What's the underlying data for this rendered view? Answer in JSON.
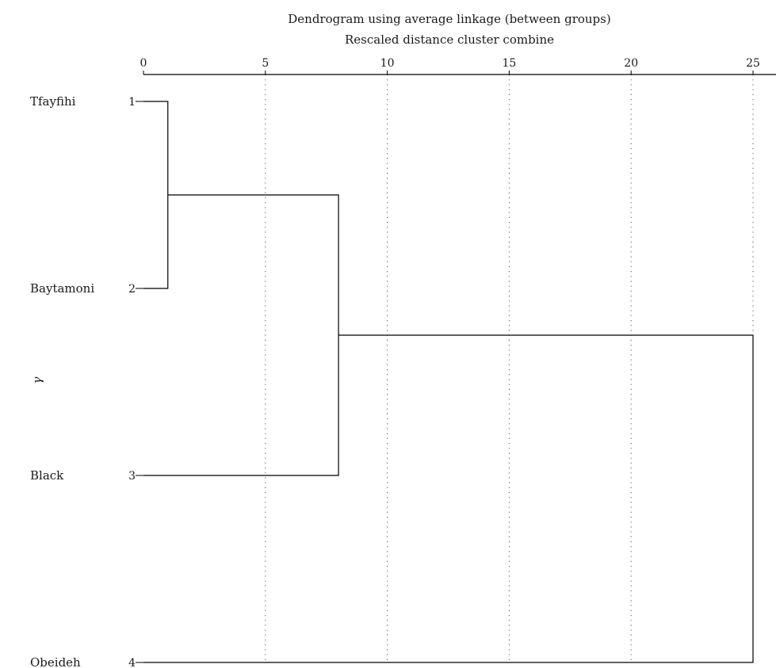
{
  "chart_data": {
    "type": "dendrogram",
    "title": "Dendrogram using average linkage (between groups)",
    "subtitle": "Rescaled distance cluster combine",
    "ylabel": "γ",
    "xlim": [
      0,
      25
    ],
    "x_ticks": [
      0,
      5,
      10,
      15,
      20,
      25
    ],
    "grid": true,
    "leaves": [
      {
        "label": "Tfayfihi",
        "number": "1"
      },
      {
        "label": "Baytamoni",
        "number": "2"
      },
      {
        "label": "Black",
        "number": "3"
      },
      {
        "label": "Obeideh",
        "number": "4"
      }
    ],
    "merges": [
      {
        "a": "leaf:0",
        "b": "leaf:1",
        "distance": 1
      },
      {
        "a": "node:0",
        "b": "leaf:2",
        "distance": 8
      },
      {
        "a": "node:1",
        "b": "leaf:3",
        "distance": 25
      }
    ]
  }
}
